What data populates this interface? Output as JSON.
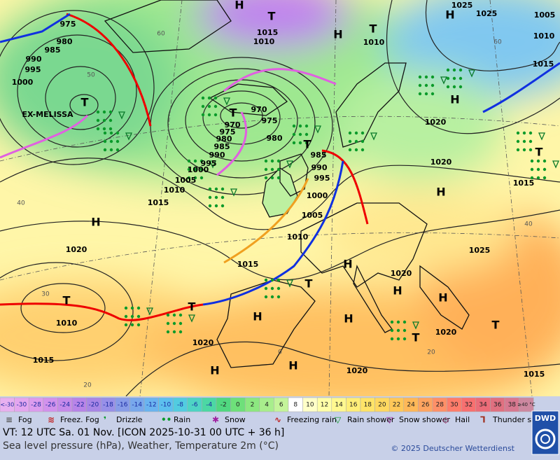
{
  "map_labels": [
    "H",
    "H",
    "H",
    "H",
    "H",
    "H",
    "H",
    "H",
    "H",
    "H",
    "H",
    "H",
    "H",
    "T",
    "T",
    "T",
    "T",
    "T",
    "T",
    "T",
    "T",
    "T",
    "T",
    "T",
    "975",
    "980",
    "985",
    "990",
    "995",
    "1000",
    "970",
    "975",
    "980",
    "970",
    "975",
    "980",
    "985",
    "990",
    "995",
    "1000",
    "1005",
    "1010",
    "1015",
    "1020",
    "985",
    "990",
    "995",
    "1000",
    "1005",
    "1010",
    "1015",
    "1010",
    "1015",
    "1020",
    "1020",
    "1020",
    "1025",
    "1020",
    "1015",
    "1015",
    "1020",
    "1020",
    "1025",
    "1025",
    "1005",
    "1010",
    "1015",
    "1015",
    "1010",
    "1010",
    "EX-MELISSA",
    "60",
    "50",
    "40",
    "30",
    "20",
    "60",
    "40",
    "20",
    "0"
  ],
  "legend": {
    "scale_low": "<-30",
    "scale": [
      -30,
      -28,
      -26,
      -24,
      -22,
      -20,
      -18,
      -16,
      -14,
      -12,
      -10,
      -8,
      -6,
      -4,
      -2,
      0,
      2,
      4,
      6,
      8,
      10,
      12,
      14,
      16,
      18,
      20,
      22,
      24,
      26,
      28,
      30,
      32,
      34,
      36,
      38
    ],
    "scale_high": "≥40 °C",
    "colors": [
      "#e8b0f0",
      "#e4a6ef",
      "#dc9cee",
      "#d292ec",
      "#c68aea",
      "#b884e8",
      "#a886e6",
      "#9890e8",
      "#879ce8",
      "#78a8ec",
      "#6ab4f0",
      "#5cc0ee",
      "#52cce0",
      "#4ed4c4",
      "#4cd8a4",
      "#50d880",
      "#6ee07a",
      "#8ce880",
      "#a8ee8c",
      "#c4f49a",
      "#ffffff",
      "#ffffc8",
      "#ffffa8",
      "#fff890",
      "#ffee78",
      "#ffe468",
      "#ffd860",
      "#ffc858",
      "#ffb858",
      "#ffa460",
      "#ff9068",
      "#ff7c6a",
      "#f87070",
      "#ec6c78",
      "#e07080",
      "#d87890",
      "#cc88a0"
    ],
    "weather": [
      "Fog",
      "Freez. Fog",
      "Drizzle",
      "Rain",
      "Snow",
      "Freezing rain",
      "Rain shower",
      "Snow shower",
      "Hail",
      "Thunder storm"
    ]
  },
  "footer": {
    "valid_time": "VT: 12 UTC Sa.  01 Nov. [ICON 2025-10-31  00 UTC + 36 h]",
    "description": "Sea level pressure (hPa), Weather, Temperature 2m (°C)",
    "copyright": "© 2025 Deutscher Wetterdienst",
    "logo": "DWD"
  }
}
